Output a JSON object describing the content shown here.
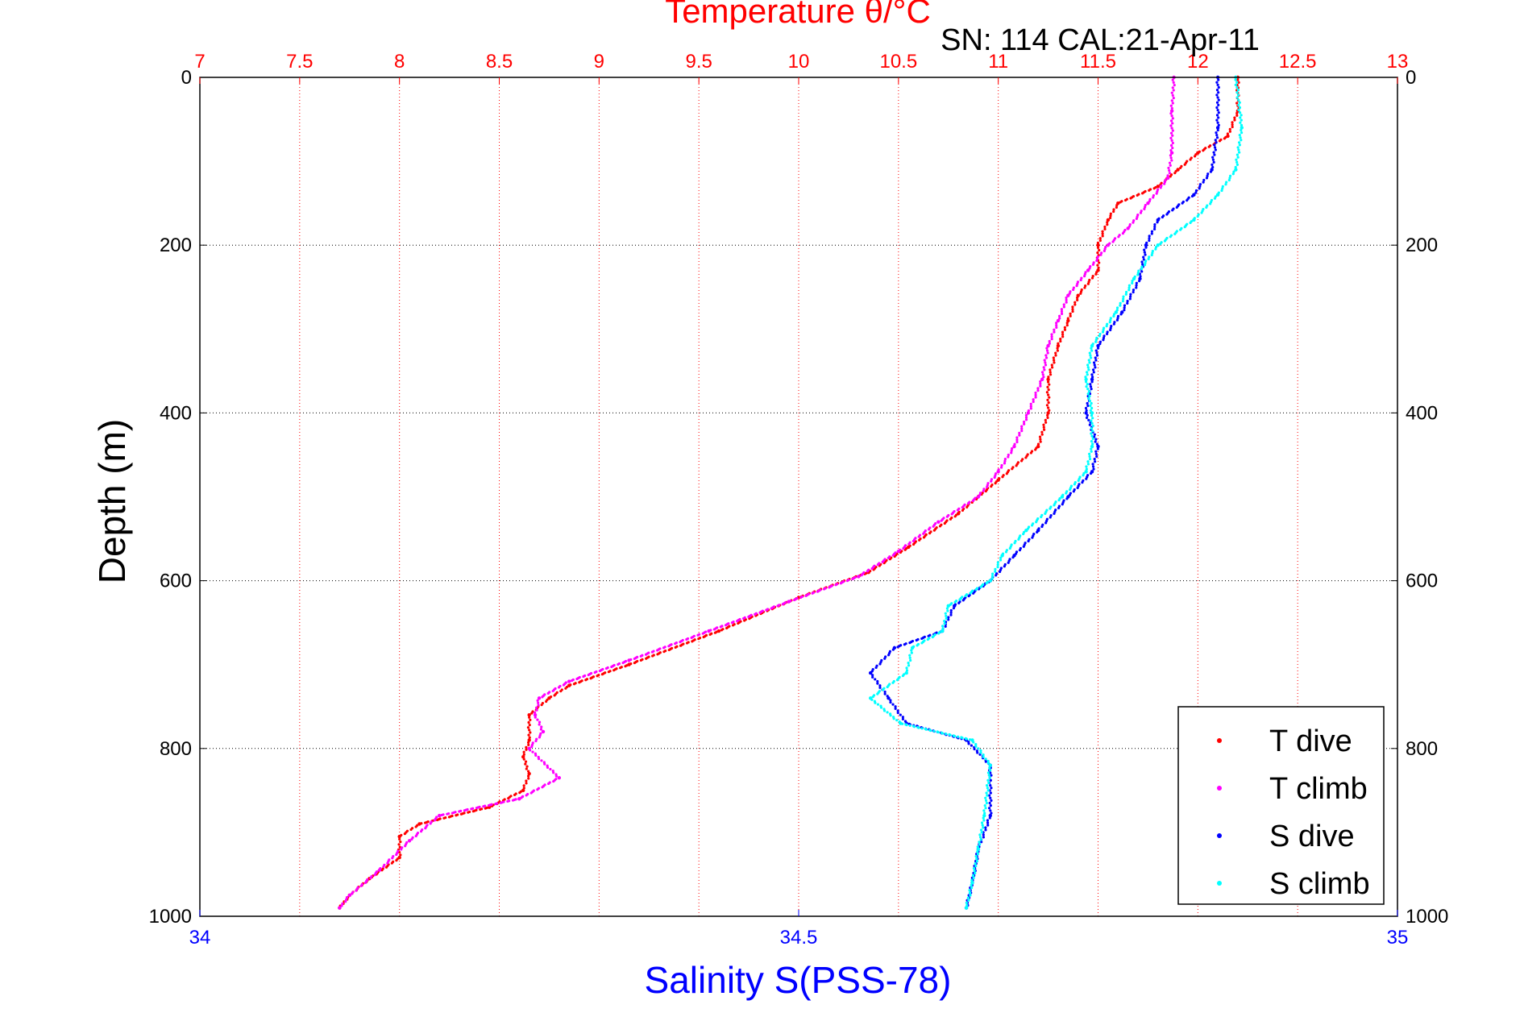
{
  "chart_data": {
    "type": "scatter",
    "title": "Temperature θ/°C",
    "subtitle": "SN: 114  CAL:21-Apr-11",
    "ylabel": "Depth (m)",
    "xlabel_bottom": "Salinity S(PSS-78)",
    "xlabel_top": "Temperature θ/°C",
    "ylim": [
      0,
      1000
    ],
    "y_reversed": true,
    "y_ticks": [
      "0",
      "200",
      "400",
      "600",
      "800",
      "1000"
    ],
    "x_top": {
      "range": [
        7,
        13
      ],
      "ticks": [
        "7",
        "7.5",
        "8",
        "8.5",
        "9",
        "9.5",
        "10",
        "10.5",
        "11",
        "11.5",
        "12",
        "12.5",
        "13"
      ],
      "color": "#ff0000"
    },
    "x_bottom": {
      "range": [
        34,
        35
      ],
      "ticks": [
        "34",
        "34.5",
        "35"
      ],
      "color": "#0000ff"
    },
    "grid": true,
    "legend_position": "bottom-right",
    "legend": [
      {
        "label": "T dive",
        "color": "#ff0000"
      },
      {
        "label": "T climb",
        "color": "#ff00ff"
      },
      {
        "label": "S dive",
        "color": "#0000ff"
      },
      {
        "label": "S climb",
        "color": "#00ffff"
      }
    ],
    "series": [
      {
        "name": "T dive",
        "axis": "top",
        "color": "#ff0000",
        "points": [
          [
            12.2,
            0
          ],
          [
            12.2,
            40
          ],
          [
            12.15,
            70
          ],
          [
            12.0,
            90
          ],
          [
            11.9,
            110
          ],
          [
            11.8,
            130
          ],
          [
            11.6,
            150
          ],
          [
            11.55,
            170
          ],
          [
            11.5,
            200
          ],
          [
            11.5,
            230
          ],
          [
            11.4,
            260
          ],
          [
            11.35,
            290
          ],
          [
            11.3,
            320
          ],
          [
            11.25,
            360
          ],
          [
            11.25,
            400
          ],
          [
            11.2,
            440
          ],
          [
            11.0,
            480
          ],
          [
            10.8,
            520
          ],
          [
            10.55,
            560
          ],
          [
            10.35,
            590
          ],
          [
            10.0,
            620
          ],
          [
            9.6,
            660
          ],
          [
            9.15,
            700
          ],
          [
            8.85,
            725
          ],
          [
            8.75,
            740
          ],
          [
            8.65,
            760
          ],
          [
            8.65,
            790
          ],
          [
            8.62,
            810
          ],
          [
            8.65,
            830
          ],
          [
            8.62,
            850
          ],
          [
            8.45,
            870
          ],
          [
            8.1,
            890
          ],
          [
            8.0,
            905
          ],
          [
            8.0,
            930
          ],
          [
            7.85,
            955
          ],
          [
            7.75,
            975
          ],
          [
            7.7,
            990
          ]
        ]
      },
      {
        "name": "T climb",
        "axis": "top",
        "color": "#ff00ff",
        "points": [
          [
            11.88,
            0
          ],
          [
            11.87,
            40
          ],
          [
            11.87,
            90
          ],
          [
            11.85,
            120
          ],
          [
            11.75,
            150
          ],
          [
            11.65,
            180
          ],
          [
            11.55,
            200
          ],
          [
            11.45,
            230
          ],
          [
            11.35,
            260
          ],
          [
            11.3,
            290
          ],
          [
            11.25,
            320
          ],
          [
            11.22,
            360
          ],
          [
            11.15,
            400
          ],
          [
            11.08,
            440
          ],
          [
            11.0,
            470
          ],
          [
            10.9,
            500
          ],
          [
            10.7,
            530
          ],
          [
            10.5,
            565
          ],
          [
            10.3,
            595
          ],
          [
            9.95,
            625
          ],
          [
            9.55,
            660
          ],
          [
            9.15,
            695
          ],
          [
            8.85,
            720
          ],
          [
            8.7,
            740
          ],
          [
            8.68,
            760
          ],
          [
            8.72,
            780
          ],
          [
            8.65,
            800
          ],
          [
            8.8,
            835
          ],
          [
            8.6,
            860
          ],
          [
            8.2,
            880
          ],
          [
            8.05,
            910
          ],
          [
            7.9,
            945
          ],
          [
            7.75,
            975
          ],
          [
            7.7,
            990
          ]
        ]
      },
      {
        "name": "S dive",
        "axis": "bottom",
        "color": "#0000ff",
        "points": [
          [
            34.85,
            0
          ],
          [
            34.85,
            60
          ],
          [
            34.845,
            110
          ],
          [
            34.83,
            140
          ],
          [
            34.8,
            170
          ],
          [
            34.79,
            200
          ],
          [
            34.785,
            240
          ],
          [
            34.77,
            280
          ],
          [
            34.75,
            320
          ],
          [
            34.745,
            360
          ],
          [
            34.74,
            400
          ],
          [
            34.75,
            440
          ],
          [
            34.745,
            470
          ],
          [
            34.725,
            500
          ],
          [
            34.7,
            540
          ],
          [
            34.68,
            570
          ],
          [
            34.66,
            600
          ],
          [
            34.63,
            630
          ],
          [
            34.62,
            660
          ],
          [
            34.58,
            680
          ],
          [
            34.56,
            710
          ],
          [
            34.575,
            740
          ],
          [
            34.59,
            770
          ],
          [
            34.64,
            790
          ],
          [
            34.66,
            820
          ],
          [
            34.66,
            880
          ],
          [
            34.65,
            920
          ],
          [
            34.645,
            960
          ],
          [
            34.64,
            990
          ]
        ]
      },
      {
        "name": "S climb",
        "axis": "bottom",
        "color": "#00ffff",
        "points": [
          [
            34.865,
            0
          ],
          [
            34.87,
            60
          ],
          [
            34.865,
            110
          ],
          [
            34.85,
            140
          ],
          [
            34.83,
            170
          ],
          [
            34.8,
            200
          ],
          [
            34.78,
            240
          ],
          [
            34.765,
            280
          ],
          [
            34.745,
            320
          ],
          [
            34.74,
            360
          ],
          [
            34.745,
            400
          ],
          [
            34.745,
            440
          ],
          [
            34.74,
            470
          ],
          [
            34.72,
            500
          ],
          [
            34.69,
            540
          ],
          [
            34.67,
            570
          ],
          [
            34.66,
            600
          ],
          [
            34.625,
            630
          ],
          [
            34.62,
            660
          ],
          [
            34.595,
            680
          ],
          [
            34.59,
            710
          ],
          [
            34.56,
            740
          ],
          [
            34.585,
            770
          ],
          [
            34.645,
            790
          ],
          [
            34.66,
            820
          ],
          [
            34.655,
            880
          ],
          [
            34.65,
            920
          ],
          [
            34.645,
            960
          ],
          [
            34.64,
            990
          ]
        ]
      }
    ]
  }
}
